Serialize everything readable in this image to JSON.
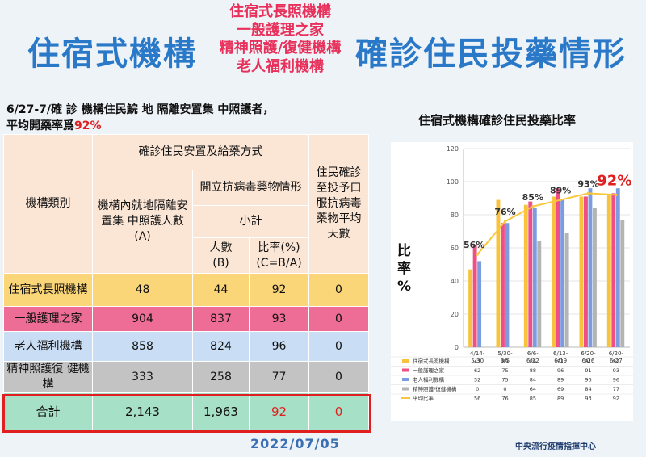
{
  "header": {
    "title_left": "住宿式機構",
    "title_mid": [
      "住宿式長照機構",
      "一般護理之家",
      "精神照護/復健機構",
      "老人福利機構"
    ],
    "title_right": "確診住民投藥情形"
  },
  "intro": {
    "text": "6/27-7/確 診 機構住民鯇 地 隔離安置集 中照護者，",
    "line2_prefix": "平均開藥率爲",
    "line2_value": "92%"
  },
  "table": {
    "col_category": "機構類別",
    "col_group": "確診住民安置及給藥方式",
    "col_inhouse": "機構內就地隔離安置集 中照護人數\n(A)",
    "col_antiviral": "開立抗病毒藥物情形",
    "col_subtotal": "小計",
    "col_count": "人數\n(B)",
    "col_ratio": "比率(%)\n(C=B/A)",
    "col_days": "住民確診至投予口服抗病毒藥物平均天數",
    "rows": [
      {
        "name": "住宿式長照機構",
        "a": "48",
        "b": "44",
        "c": "92",
        "d": "0"
      },
      {
        "name": "一般護理之家",
        "a": "904",
        "b": "837",
        "c": "93",
        "d": "0"
      },
      {
        "name": "老人福利機構",
        "a": "858",
        "b": "824",
        "c": "96",
        "d": "0"
      },
      {
        "name": "精神照護復 健機構",
        "a": "333",
        "b": "258",
        "c": "77",
        "d": "0"
      }
    ],
    "total": {
      "name": "合計",
      "a": "2,143",
      "b": "1,963",
      "c": "92",
      "d": "0"
    }
  },
  "date": "2022/07/05",
  "source": "中央流行疫情指揮中心",
  "chart_data": {
    "type": "bar",
    "title": "住宿式機構確診住民投藥比率",
    "ylabel": "比率%",
    "ylim": [
      0,
      120
    ],
    "yticks": [
      0,
      20,
      40,
      60,
      80,
      100,
      120
    ],
    "categories": [
      "4/14-5/30",
      "5/30-6/5",
      "6/6-6/12",
      "6/13-6/19",
      "6/20-6/26",
      "6/20-6/27"
    ],
    "series": [
      {
        "name": "住宿式長照機構",
        "type": "bar",
        "color": "#f9c23c",
        "values": [
          47,
          89,
          86,
          91,
          91,
          92
        ]
      },
      {
        "name": "一般護理之家",
        "type": "bar",
        "color": "#ee4f86",
        "values": [
          62,
          75,
          88,
          96,
          91,
          93
        ]
      },
      {
        "name": "老人福利機構",
        "type": "bar",
        "color": "#7b9de0",
        "values": [
          52,
          75,
          84,
          89,
          96,
          96
        ]
      },
      {
        "name": "精神照護/復健機構",
        "type": "bar",
        "color": "#b4b4b4",
        "values": [
          0,
          0,
          64,
          69,
          84,
          77
        ]
      },
      {
        "name": "平均比率",
        "type": "line",
        "color": "#f7c83e",
        "values": [
          56,
          76,
          85,
          89,
          93,
          92
        ]
      }
    ],
    "annotations": [
      "56%",
      "76%",
      "85%",
      "89%",
      "93%",
      "92%"
    ],
    "annotation_highlight_color": "#e02020",
    "legend_position": "bottom-table"
  }
}
